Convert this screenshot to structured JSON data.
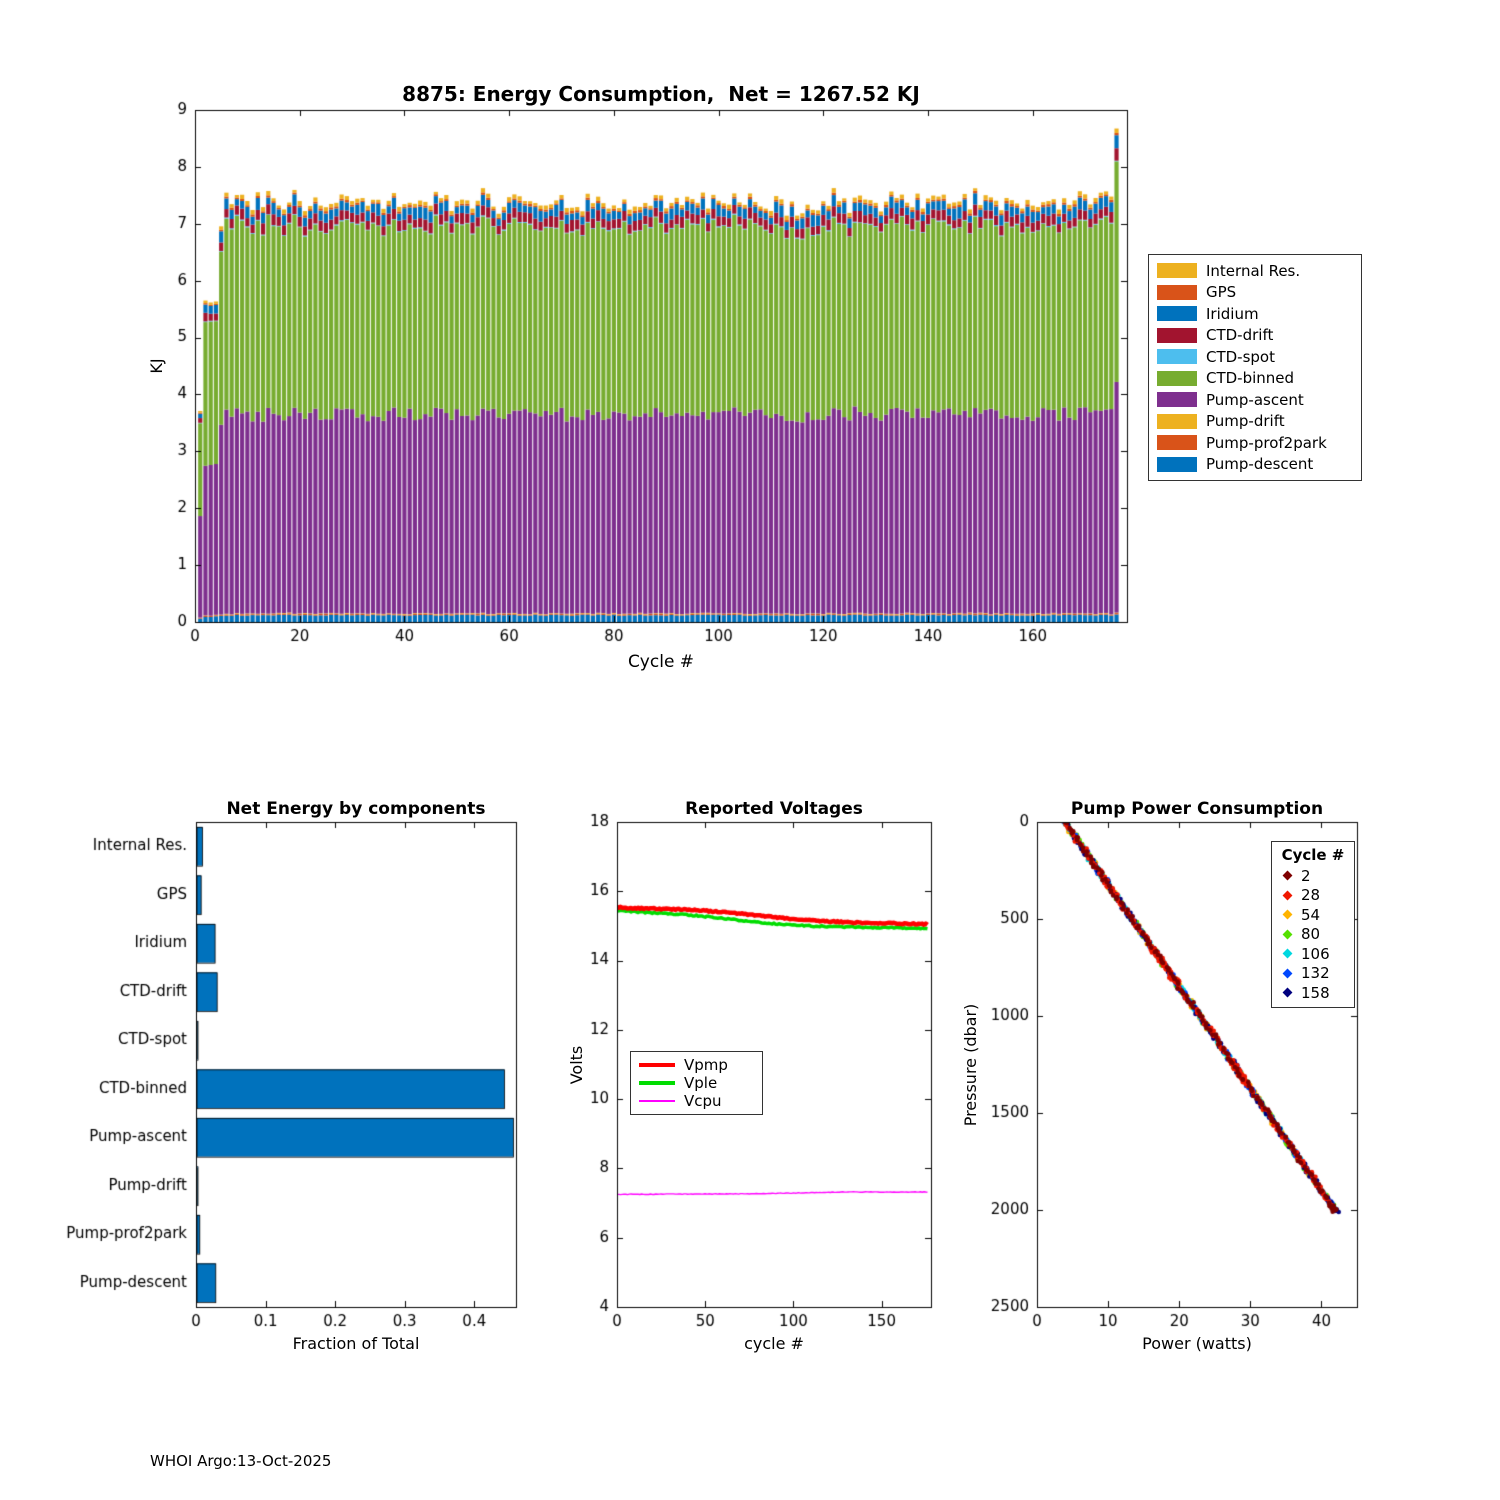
{
  "figure": {
    "footer": "WHOI Argo:13-Oct-2025",
    "background": "#ffffff"
  },
  "energy_chart": {
    "title": "8875: Energy Consumption,  Net = 1267.52 KJ",
    "xlabel": "Cycle #",
    "ylabel": "KJ",
    "type": "stacked-bar",
    "net_total_kj": 1267.52,
    "float_id": "8875",
    "xlim": [
      0,
      178
    ],
    "ylim": [
      0,
      9
    ],
    "xticks": [
      0,
      20,
      40,
      60,
      80,
      100,
      120,
      140,
      160
    ],
    "yticks": [
      0,
      1,
      2,
      3,
      4,
      5,
      6,
      7,
      8,
      9
    ],
    "n_cycles": 176,
    "series_bottom_to_top": [
      {
        "name": "Pump-descent",
        "color": "#0072BD",
        "mean": 0.12,
        "var": 0.01
      },
      {
        "name": "Pump-prof2park",
        "color": "#D95319",
        "mean": 0.02,
        "var": 0.005
      },
      {
        "name": "Pump-drift",
        "color": "#EDB120",
        "mean": 0.01,
        "var": 0.003
      },
      {
        "name": "Pump-ascent",
        "color": "#7E2F8E",
        "mean": 3.5,
        "var": 0.13
      },
      {
        "name": "CTD-binned",
        "color": "#77AC30",
        "mean": 3.3,
        "var": 0.1
      },
      {
        "name": "CTD-spot",
        "color": "#4DBEEE",
        "mean": 0.015,
        "var": 0.005
      },
      {
        "name": "CTD-drift",
        "color": "#A2142F",
        "mean": 0.17,
        "var": 0.03
      },
      {
        "name": "Iridium",
        "color": "#0072BD",
        "mean": 0.16,
        "var": 0.05
      },
      {
        "name": "GPS",
        "color": "#D95319",
        "mean": 0.035,
        "var": 0.01
      },
      {
        "name": "Internal Res.",
        "color": "#EDB120",
        "mean": 0.06,
        "var": 0.02
      }
    ],
    "cycle_scale_overrides": {
      "1": 0.5,
      "2": 0.77,
      "3": 0.78,
      "4": 0.78,
      "5": 0.95,
      "176": 1.16
    }
  },
  "components_chart": {
    "title": "Net Energy by components",
    "xlabel": "Fraction of Total",
    "type": "bar-horizontal",
    "bar_color": "#0072BD",
    "xlim": [
      0,
      0.46
    ],
    "xticks": [
      0,
      0.1,
      0.2,
      0.3,
      0.4
    ],
    "categories": [
      "Internal Res.",
      "GPS",
      "Iridium",
      "CTD-drift",
      "CTD-spot",
      "CTD-binned",
      "Pump-ascent",
      "Pump-drift",
      "Pump-prof2park",
      "Pump-descent"
    ],
    "values": [
      0.008,
      0.006,
      0.026,
      0.029,
      0.001,
      0.442,
      0.455,
      0.001,
      0.004,
      0.027
    ]
  },
  "voltages_chart": {
    "title": "Reported Voltages",
    "xlabel": "cycle #",
    "ylabel": "Volts",
    "type": "line",
    "xlim": [
      0,
      178
    ],
    "ylim": [
      4,
      18
    ],
    "xticks": [
      0,
      50,
      100,
      150
    ],
    "yticks": [
      4,
      6,
      8,
      10,
      12,
      14,
      16,
      18
    ],
    "series": [
      {
        "name": "Vple",
        "color": "#00DC00",
        "line_width": 3.5,
        "noise": 0.02,
        "x": [
          0,
          5,
          20,
          40,
          60,
          80,
          100,
          120,
          140,
          160,
          176
        ],
        "y": [
          15.45,
          15.42,
          15.38,
          15.32,
          15.22,
          15.1,
          15.02,
          14.98,
          14.96,
          14.94,
          14.92
        ]
      },
      {
        "name": "Vpmp",
        "color": "#FF0000",
        "line_width": 4.5,
        "noise": 0.02,
        "x": [
          0,
          5,
          20,
          40,
          60,
          80,
          100,
          120,
          140,
          160,
          176
        ],
        "y": [
          15.55,
          15.52,
          15.5,
          15.47,
          15.4,
          15.3,
          15.2,
          15.13,
          15.09,
          15.07,
          15.05
        ]
      },
      {
        "name": "Vcpu",
        "color": "#FF00FF",
        "line_width": 1.4,
        "noise": 0.008,
        "x": [
          0,
          40,
          80,
          110,
          130,
          176
        ],
        "y": [
          7.25,
          7.26,
          7.27,
          7.3,
          7.32,
          7.32
        ]
      }
    ],
    "legend_order": [
      "Vpmp",
      "Vple",
      "Vcpu"
    ]
  },
  "pump_chart": {
    "title": "Pump Power Consumption",
    "xlabel": "Power (watts)",
    "ylabel": "Pressure (dbar)",
    "type": "scatter",
    "xlim": [
      0,
      45
    ],
    "ylim": [
      0,
      2500
    ],
    "y_reversed": true,
    "xticks": [
      0,
      10,
      20,
      30,
      40
    ],
    "yticks": [
      0,
      500,
      1000,
      1500,
      2000,
      2500
    ],
    "legend_title": "Cycle #",
    "line_model": {
      "power_at_surface": 3.9,
      "watts_per_dbar": 0.019,
      "pressure_step": 12,
      "power_jitter": 0.3
    },
    "series": [
      {
        "name": "2",
        "color": "#7F0000",
        "p_max": 2010,
        "dense_segments": [
          [
            1975,
            2010
          ]
        ]
      },
      {
        "name": "28",
        "color": "#F01800",
        "p_max": 2005,
        "dense_segments": [
          [
            640,
            840
          ],
          [
            1220,
            1350
          ]
        ]
      },
      {
        "name": "54",
        "color": "#FFB400",
        "p_max": 2000,
        "dense_segments": []
      },
      {
        "name": "80",
        "color": "#55E000",
        "p_max": 2000,
        "dense_segments": []
      },
      {
        "name": "106",
        "color": "#00D8E0",
        "p_max": 2000,
        "dense_segments": []
      },
      {
        "name": "132",
        "color": "#0048FF",
        "p_max": 2005,
        "dense_segments": []
      },
      {
        "name": "158",
        "color": "#00007F",
        "p_max": 2010,
        "dense_segments": [
          [
            1950,
            2010
          ]
        ]
      }
    ]
  }
}
